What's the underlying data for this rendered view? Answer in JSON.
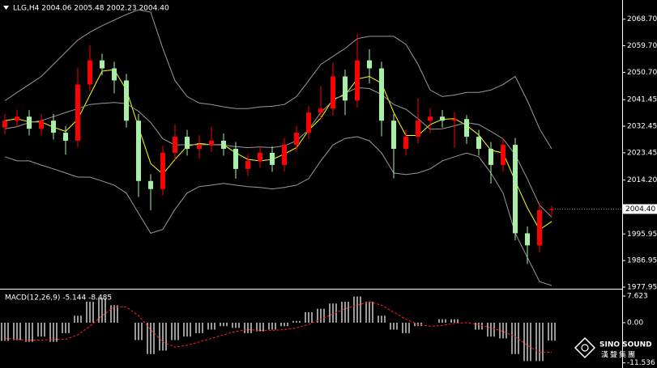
{
  "chart_data": [
    {
      "type": "candlestick",
      "title": "LLG,H4 2004.06 2005.48 2002.23 2004.40",
      "up_color": "#ff0000",
      "down_color": "#a8f0a8",
      "open": [
        2032.0,
        2034.33,
        2035.69,
        2031.6,
        2034.33,
        2030.24,
        2027.52,
        2046.59,
        2054.76,
        2052.04,
        2047.95,
        2034.33,
        2013.89,
        2011.17,
        2023.43,
        2028.88,
        2024.79,
        2026.15,
        2027.52,
        2024.79,
        2017.98,
        2020.7,
        2023.43,
        2019.34,
        2026.15,
        2030.24,
        2037.05,
        2038.42,
        2049.31,
        2041.14,
        2054.76,
        2052.04,
        2034.33,
        2024.79,
        2028.88,
        2034.33,
        2035.69,
        2034.33,
        2034.87,
        2028.88,
        2024.79,
        2019.34,
        2026.15,
        1996.18,
        1992.09,
        2004.06
      ],
      "high": [
        2036.6,
        2038.0,
        2037.9,
        2036.6,
        2036.6,
        2032.5,
        2052.3,
        2059.8,
        2057.0,
        2054.3,
        2050.2,
        2036.6,
        2016.2,
        2025.7,
        2033.2,
        2031.2,
        2029.4,
        2032.3,
        2030.0,
        2027.1,
        2023.0,
        2025.7,
        2025.7,
        2028.4,
        2032.5,
        2039.3,
        2046.0,
        2054.0,
        2051.6,
        2063.8,
        2058.5,
        2054.3,
        2036.6,
        2031.2,
        2042.0,
        2038.5,
        2037.9,
        2037.2,
        2036.2,
        2031.2,
        2027.1,
        2028.5,
        2028.5,
        1998.5,
        2006.4,
        2005.48
      ],
      "low": [
        2029.7,
        2032.0,
        2029.3,
        2029.3,
        2027.9,
        2022.8,
        2025.2,
        2044.3,
        2049.7,
        2043.6,
        2032.0,
        2008.5,
        2004.0,
        2009.0,
        2021.1,
        2022.5,
        2021.5,
        2023.8,
        2022.5,
        2014.7,
        2015.7,
        2018.4,
        2017.0,
        2017.1,
        2023.8,
        2028.0,
        2034.7,
        2036.1,
        2036.2,
        2038.8,
        2047.0,
        2029.0,
        2014.8,
        2022.5,
        2026.6,
        2030.0,
        2032.0,
        2025.2,
        2026.5,
        2022.5,
        2013.0,
        2017.0,
        1993.8,
        1985.8,
        1989.7,
        2002.23
      ],
      "close": [
        2034.33,
        2035.69,
        2031.6,
        2034.33,
        2030.24,
        2027.52,
        2046.59,
        2054.76,
        2052.04,
        2047.95,
        2034.33,
        2013.89,
        2011.17,
        2023.43,
        2028.88,
        2024.79,
        2026.15,
        2027.52,
        2024.79,
        2017.98,
        2020.7,
        2023.43,
        2019.34,
        2026.15,
        2030.24,
        2037.05,
        2038.42,
        2049.31,
        2041.14,
        2054.76,
        2052.04,
        2034.33,
        2024.79,
        2028.88,
        2034.33,
        2035.69,
        2034.33,
        2034.87,
        2028.88,
        2024.79,
        2019.34,
        2026.15,
        1996.18,
        1992.09,
        2004.06,
        2004.4
      ],
      "lines": [
        {
          "color": "#ffff00",
          "values": [
            2034.3,
            2035.0,
            2033.9,
            2033.9,
            2032.1,
            2030.7,
            2034.8,
            2043.0,
            2051.1,
            2051.6,
            2044.8,
            2032.1,
            2019.8,
            2016.2,
            2021.2,
            2025.7,
            2026.6,
            2026.2,
            2026.2,
            2023.4,
            2021.2,
            2020.7,
            2021.2,
            2023.0,
            2025.2,
            2031.1,
            2035.2,
            2041.6,
            2043.0,
            2048.4,
            2049.3,
            2047.0,
            2037.1,
            2029.3,
            2029.3,
            2033.0,
            2034.8,
            2035.0,
            2032.7,
            2029.5,
            2024.3,
            2023.4,
            2013.9,
            2004.8,
            1997.4,
            2000.2
          ]
        },
        {
          "color": "#9a9a9a",
          "values": [
            2041.1,
            2043.9,
            2046.6,
            2049.3,
            2053.4,
            2057.5,
            2061.6,
            2064.3,
            2066.5,
            2068.4,
            2070.3,
            2071.9,
            2071.1,
            2058.8,
            2047.9,
            2042.5,
            2040.3,
            2039.8,
            2039.0,
            2038.4,
            2038.4,
            2039.0,
            2039.2,
            2039.8,
            2042.5,
            2047.9,
            2053.4,
            2056.1,
            2058.8,
            2062.1,
            2062.9,
            2062.9,
            2062.9,
            2060.2,
            2053.4,
            2044.7,
            2042.5,
            2043.0,
            2043.9,
            2043.9,
            2044.7,
            2046.6,
            2049.3,
            2041.1,
            2031.6,
            2024.8
          ]
        },
        {
          "color": "#9a9a9a",
          "values": [
            2031.6,
            2032.3,
            2033.7,
            2034.3,
            2035.7,
            2037.1,
            2038.4,
            2039.8,
            2040.2,
            2040.5,
            2040.1,
            2037.5,
            2033.7,
            2028.2,
            2026.1,
            2026.2,
            2026.2,
            2026.2,
            2026.1,
            2025.5,
            2025.2,
            2025.4,
            2025.2,
            2025.8,
            2027.5,
            2031.3,
            2037.1,
            2041.1,
            2043.6,
            2045.5,
            2045.2,
            2043.2,
            2039.8,
            2038.2,
            2035.0,
            2031.4,
            2031.6,
            2032.6,
            2033.7,
            2033.0,
            2030.7,
            2028.2,
            2022.8,
            2014.6,
            2005.7,
            2001.7
          ]
        },
        {
          "color": "#9a9a9a",
          "values": [
            2022.1,
            2020.7,
            2020.7,
            2019.3,
            2018.0,
            2016.6,
            2015.2,
            2015.2,
            2013.9,
            2012.5,
            2009.8,
            2003.0,
            1996.2,
            1997.5,
            2004.3,
            2009.8,
            2012.0,
            2012.5,
            2013.1,
            2012.5,
            2012.0,
            2011.7,
            2011.2,
            2011.7,
            2012.5,
            2014.7,
            2020.7,
            2026.1,
            2028.3,
            2028.9,
            2027.5,
            2023.4,
            2016.6,
            2016.1,
            2016.6,
            2018.0,
            2020.7,
            2022.1,
            2023.4,
            2022.1,
            2016.6,
            2009.8,
            1996.2,
            1988.0,
            1979.8,
            1978.5
          ]
        }
      ],
      "ylim": [
        1977.4,
        2075.2
      ],
      "yticks": [
        {
          "value": 2068.7,
          "label": "2068.70"
        },
        {
          "value": 2059.7,
          "label": "2059.70"
        },
        {
          "value": 2050.7,
          "label": "2050.70"
        },
        2041.45,
        2032.45,
        2023.45,
        {
          "value": 2014.2,
          "label": "2014.20"
        },
        1995.95,
        1986.95,
        1977.95
      ],
      "last_price": {
        "value": 2004.4,
        "label": "2004.40"
      }
    },
    {
      "type": "macd",
      "title": "MACD(12,26,9) -5.144 -8.485",
      "histogram_color": "#ffffff",
      "signal_color": "#ff2020",
      "values": [
        -5.2,
        -5,
        -5.5,
        -4,
        -5.5,
        -3,
        2,
        6,
        7,
        5,
        0,
        -5,
        -9,
        -8,
        -5,
        -4,
        -3,
        -2,
        -1,
        -1.5,
        -3,
        -2.5,
        -2,
        -1,
        0.5,
        3,
        4,
        5.5,
        6,
        7.5,
        6,
        2,
        -2,
        -3,
        -1,
        0,
        1,
        1,
        0,
        -2,
        -4,
        -4.5,
        -9,
        -11,
        -11,
        -5.144
      ],
      "signal": [
        -4.5,
        -4.8,
        -5,
        -5,
        -4.8,
        -4.8,
        -3.5,
        -1,
        2,
        4.5,
        4.5,
        2,
        -2,
        -5.5,
        -7,
        -6.5,
        -5.5,
        -4.5,
        -3.5,
        -2.5,
        -2,
        -2.2,
        -2.2,
        -2,
        -1.5,
        -0.5,
        1,
        2.5,
        4,
        5,
        6,
        5,
        3,
        1,
        -0.5,
        -1,
        -0.8,
        -0.2,
        0,
        -0.5,
        -1.5,
        -2.5,
        -4,
        -6.5,
        -8.5,
        -8.485
      ],
      "ylim": [
        -13,
        9.5
      ],
      "yticks": [
        7.623,
        {
          "value": 0,
          "label": "0.00"
        },
        -11.536
      ]
    }
  ],
  "watermark": {
    "brand": "SINO SOUND",
    "chinese": "漢聲集團"
  }
}
